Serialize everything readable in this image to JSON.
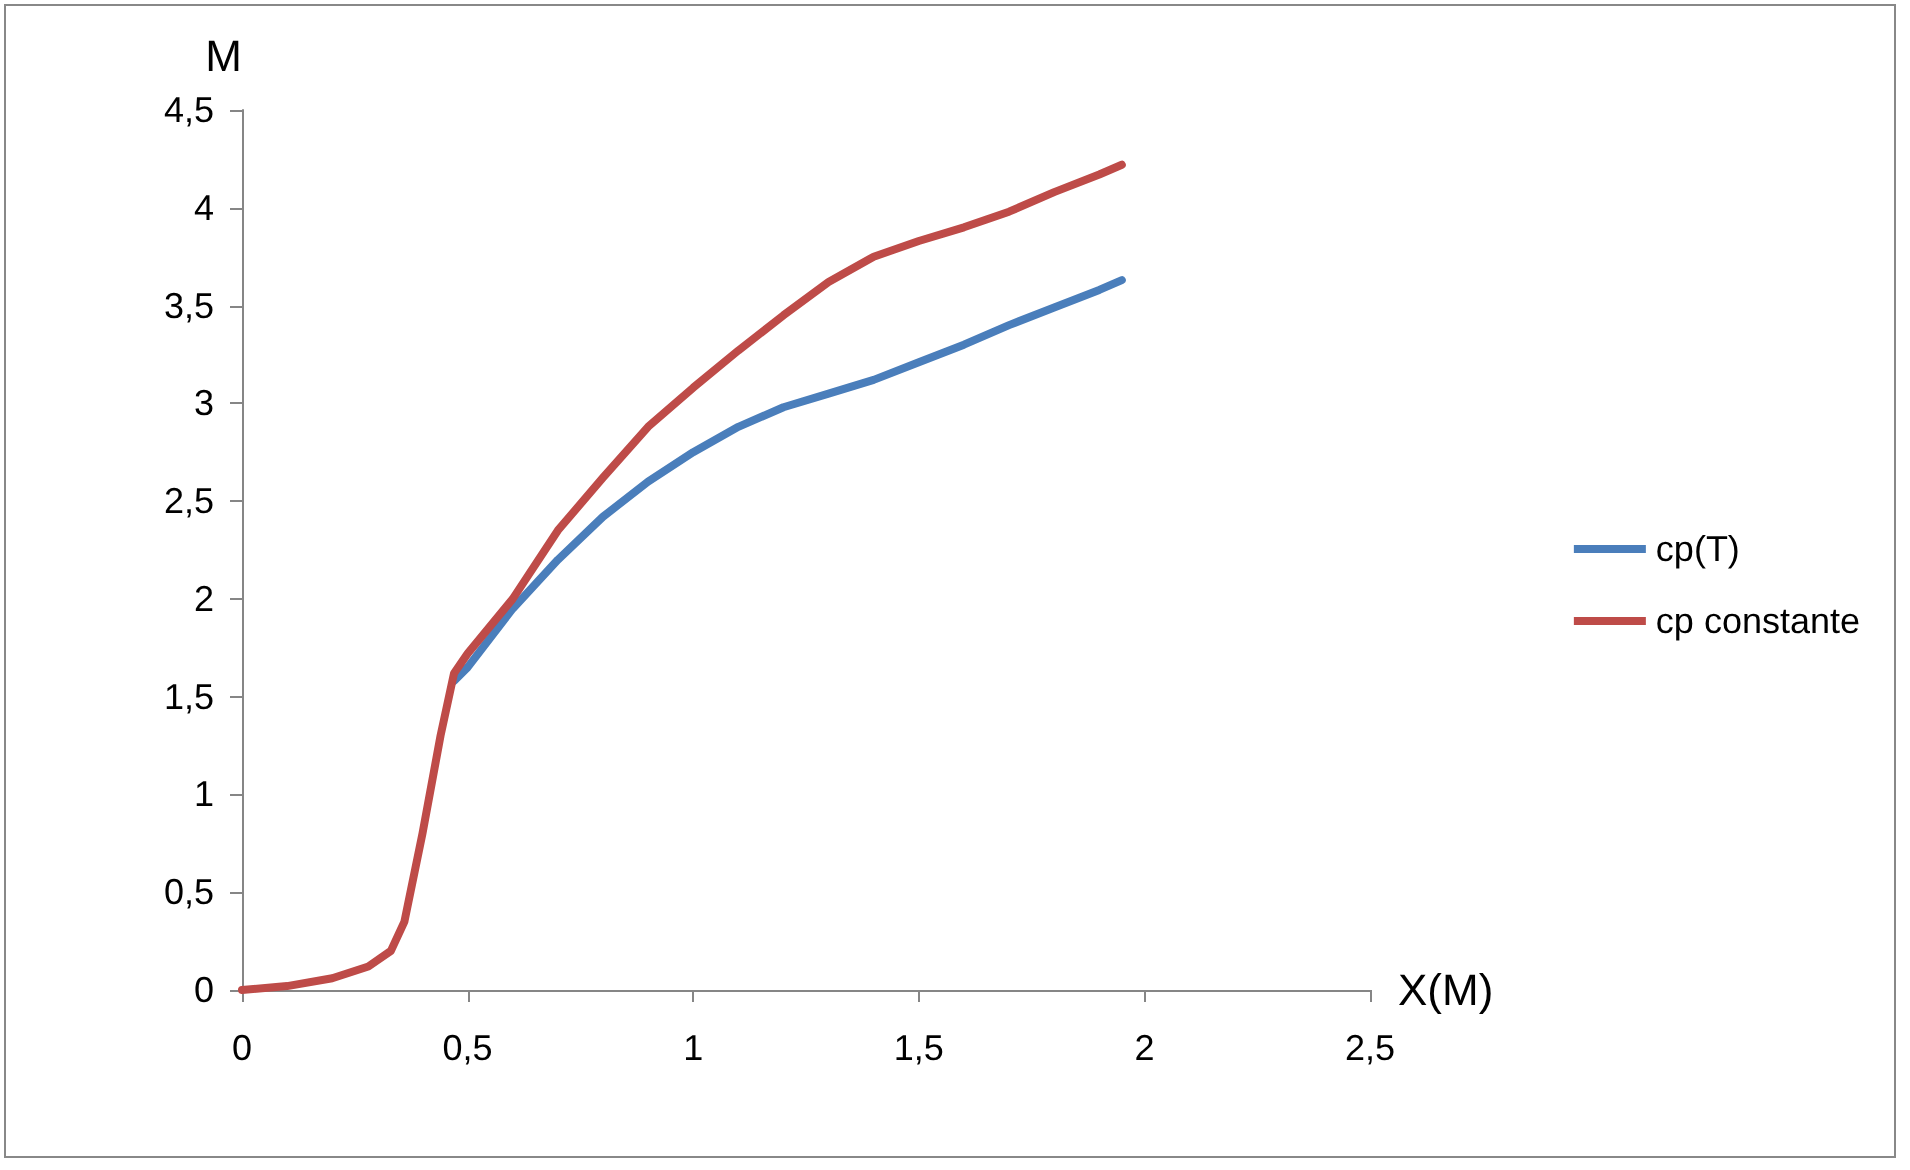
{
  "chart_data": {
    "type": "line",
    "xlabel": "X(M)",
    "ylabel": "M",
    "xlim": [
      0,
      2.5
    ],
    "xticks": [
      0,
      {
        "value": 0.5,
        "label": "0,5"
      },
      1,
      {
        "value": 1.5,
        "label": "1,5"
      },
      2,
      {
        "value": 2.5,
        "label": "2,5"
      }
    ],
    "ylim": [
      0,
      4.5
    ],
    "yticks": [
      0,
      {
        "value": 0.5,
        "label": "0,5"
      },
      1,
      {
        "value": 1.5,
        "label": "1,5"
      },
      2,
      {
        "value": 2.5,
        "label": "2,5"
      },
      3,
      {
        "value": 3.5,
        "label": "3,5"
      },
      4,
      {
        "value": 4.5,
        "label": "4,5"
      }
    ],
    "grid": false,
    "legend": "right",
    "marker": "none",
    "line_style": "solid",
    "series": [
      {
        "name": "cp(T)",
        "color": "#4a7ebb",
        "x": [
          0.47,
          0.5,
          0.6,
          0.7,
          0.8,
          0.9,
          1.0,
          1.1,
          1.2,
          1.3,
          1.4,
          1.5,
          1.6,
          1.7,
          1.8,
          1.9,
          1.95
        ],
        "values": [
          1.58,
          1.65,
          1.95,
          2.2,
          2.42,
          2.6,
          2.75,
          2.88,
          2.98,
          3.05,
          3.12,
          3.21,
          3.3,
          3.4,
          3.49,
          3.58,
          3.63
        ]
      },
      {
        "name": "cp constante",
        "color": "#be4b48",
        "x": [
          0,
          0.1,
          0.2,
          0.28,
          0.33,
          0.36,
          0.4,
          0.44,
          0.47,
          0.5,
          0.6,
          0.7,
          0.8,
          0.9,
          1.0,
          1.1,
          1.2,
          1.3,
          1.4,
          1.5,
          1.6,
          1.7,
          1.8,
          1.9,
          1.95
        ],
        "values": [
          0,
          0.02,
          0.06,
          0.12,
          0.2,
          0.35,
          0.8,
          1.3,
          1.62,
          1.72,
          2.0,
          2.35,
          2.62,
          2.88,
          3.08,
          3.27,
          3.45,
          3.62,
          3.75,
          3.83,
          3.9,
          3.98,
          4.08,
          4.17,
          4.22
        ]
      }
    ]
  }
}
